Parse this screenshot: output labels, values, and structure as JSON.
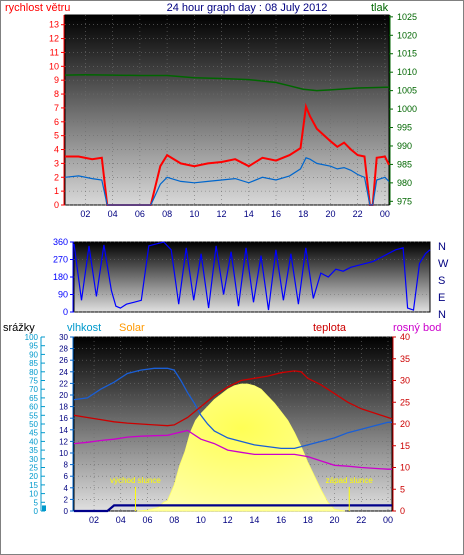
{
  "colors": {
    "wind": "#ff0000",
    "wind_avg": "#0066cc",
    "pressure": "#006600",
    "direction": "#0000ff",
    "humidity": "#1a5fd6",
    "solar_fill": "#ffff88",
    "solar_text": "#ff9900",
    "temperature": "#cc0000",
    "dewpoint": "#cc00cc",
    "rain": "#00008b",
    "rain_axis": "#0099cc",
    "marker": "#ffff00"
  },
  "chart_data": [
    {
      "type": "line",
      "title": "24 hour graph day : 08 July 2012",
      "ylabel_left": "rychlost větru",
      "ylabel_right": "tlak",
      "x_ticks": [
        "02",
        "04",
        "06",
        "08",
        "10",
        "12",
        "14",
        "16",
        "18",
        "20",
        "22",
        "00"
      ],
      "x_range": [
        0.5,
        24.3
      ],
      "left_axis": {
        "range": [
          0,
          13.7
        ],
        "ticks": [
          "0",
          "1",
          "2",
          "3",
          "4",
          "5",
          "6",
          "7",
          "8",
          "9",
          "10",
          "11",
          "12",
          "13"
        ]
      },
      "right_axis": {
        "range": [
          974,
          1025.5
        ],
        "ticks": [
          "975",
          "980",
          "985",
          "990",
          "995",
          "1000",
          "1005",
          "1010",
          "1015",
          "1020",
          "1025"
        ]
      },
      "series": [
        {
          "role": "gust",
          "x": [
            0.5,
            1.5,
            2.5,
            3.2,
            3.6,
            4.5,
            5.5,
            6.1,
            6.8,
            7.5,
            8.0,
            9.0,
            10.0,
            11.0,
            12.0,
            13.0,
            14.0,
            15.0,
            16.0,
            17.0,
            17.8,
            18.2,
            18.5,
            19.0,
            20.0,
            20.5,
            21.0,
            21.5,
            22.0,
            22.5,
            22.9,
            23.1,
            23.4,
            24.0,
            24.3
          ],
          "values": [
            3.5,
            3.5,
            3.3,
            3.4,
            0,
            0,
            0,
            0,
            0,
            2.8,
            3.6,
            3.0,
            2.8,
            3.0,
            3.1,
            3.3,
            2.8,
            3.4,
            3.2,
            3.6,
            4.1,
            7.1,
            6.4,
            5.5,
            4.6,
            4.2,
            4.5,
            4.0,
            3.6,
            3.5,
            0,
            0,
            3.4,
            3.5,
            2.9
          ]
        },
        {
          "role": "average",
          "x": [
            0.5,
            1.5,
            2.5,
            3.2,
            3.6,
            4.5,
            5.5,
            6.1,
            6.8,
            7.5,
            8.0,
            9.0,
            10.0,
            11.0,
            12.0,
            13.0,
            14.0,
            15.0,
            16.0,
            17.0,
            17.8,
            18.2,
            18.5,
            19.0,
            20.0,
            20.5,
            21.0,
            21.5,
            22.0,
            22.5,
            22.9,
            23.1,
            23.4,
            24.0,
            24.3
          ],
          "values": [
            2.0,
            2.1,
            1.9,
            1.8,
            0,
            0,
            0,
            0,
            0,
            1.5,
            2.0,
            1.7,
            1.6,
            1.7,
            1.8,
            1.9,
            1.6,
            2.0,
            1.8,
            2.1,
            2.6,
            3.4,
            3.3,
            3.0,
            2.8,
            2.6,
            2.7,
            2.5,
            2.2,
            2.0,
            0,
            0,
            1.8,
            2.0,
            1.7
          ]
        },
        {
          "role": "pressure",
          "x": [
            0.5,
            2,
            4,
            6,
            8,
            10,
            12,
            14,
            16,
            17,
            18,
            19,
            20,
            22,
            24,
            24.3
          ],
          "values": [
            1009.2,
            1009.3,
            1009.2,
            1009.1,
            1009.1,
            1008.5,
            1008.3,
            1008.0,
            1007.2,
            1006.3,
            1005.4,
            1005.0,
            1005.2,
            1005.7,
            1005.9,
            1005.9
          ]
        }
      ]
    },
    {
      "type": "line",
      "ylabel_right": "",
      "x_range": [
        0.5,
        24.3
      ],
      "left_axis": {
        "range": [
          0,
          360
        ],
        "ticks": [
          "0",
          "90",
          "180",
          "270",
          "360"
        ]
      },
      "compass": [
        "N",
        "W",
        "S",
        "E",
        "N"
      ],
      "series": [
        {
          "role": "direction",
          "x": [
            0.5,
            1.0,
            1.5,
            2.0,
            2.5,
            3.0,
            3.3,
            3.6,
            4.0,
            4.5,
            5.0,
            5.5,
            6.0,
            6.5,
            7.0,
            7.5,
            8.0,
            8.5,
            9.0,
            9.5,
            10.0,
            10.5,
            11.0,
            11.5,
            12.0,
            12.5,
            13.0,
            13.5,
            14.0,
            14.5,
            15.0,
            15.5,
            16.0,
            16.5,
            17.0,
            17.5,
            18.0,
            18.5,
            19.0,
            19.5,
            20.0,
            20.5,
            21.0,
            21.5,
            22.0,
            22.5,
            22.8,
            23.2,
            23.6,
            24.0,
            24.3
          ],
          "values": [
            350,
            60,
            340,
            80,
            345,
            110,
            30,
            20,
            40,
            50,
            60,
            340,
            350,
            360,
            320,
            40,
            330,
            60,
            300,
            20,
            340,
            90,
            310,
            30,
            330,
            50,
            290,
            10,
            320,
            60,
            300,
            40,
            330,
            70,
            200,
            180,
            220,
            210,
            230,
            240,
            250,
            260,
            280,
            300,
            320,
            330,
            20,
            10,
            250,
            300,
            320
          ]
        }
      ]
    },
    {
      "type": "line",
      "left_labels": [
        "srážky",
        "vlhkost",
        "Solar"
      ],
      "right_labels": [
        "teplota",
        "rosný bod"
      ],
      "x_ticks": [
        "02",
        "04",
        "06",
        "08",
        "10",
        "12",
        "14",
        "16",
        "18",
        "20",
        "22",
        "00"
      ],
      "x_range": [
        0.5,
        24.3
      ],
      "rain_axis": {
        "range": [
          0,
          100
        ],
        "ticks": [
          "0",
          "5",
          "10",
          "15",
          "20",
          "25",
          "30",
          "35",
          "40",
          "45",
          "50",
          "55",
          "60",
          "65",
          "70",
          "75",
          "80",
          "85",
          "90",
          "95",
          "100"
        ]
      },
      "humidity_axis": {
        "range": [
          0,
          30
        ],
        "ticks": [
          "0",
          "2",
          "4",
          "6",
          "8",
          "10",
          "12",
          "14",
          "16",
          "18",
          "20",
          "22",
          "24",
          "26",
          "28",
          "30"
        ]
      },
      "temp_axis": {
        "range": [
          0,
          40
        ],
        "ticks": [
          "0",
          "5",
          "10",
          "15",
          "20",
          "25",
          "30",
          "35",
          "40"
        ]
      },
      "annotations": [
        {
          "text": "východ slunce",
          "x": 5.1
        },
        {
          "text": "západ slunce",
          "x": 21.1
        }
      ],
      "series": [
        {
          "role": "humidity",
          "x": [
            0.5,
            1.5,
            2.5,
            3.5,
            4.5,
            5.5,
            6.5,
            7.5,
            8.0,
            8.5,
            9.0,
            9.5,
            10.0,
            10.5,
            11.0,
            11.5,
            12.0,
            13.0,
            14.0,
            15.0,
            16.0,
            17.0,
            18.0,
            19.0,
            20.0,
            21.0,
            22.0,
            23.0,
            24.0,
            24.3
          ],
          "values": [
            64,
            65,
            70,
            74,
            79,
            81,
            82,
            82,
            81,
            75,
            68,
            62,
            55,
            50,
            46,
            44,
            42,
            40,
            38,
            37,
            36,
            36,
            38,
            40,
            42,
            45,
            47,
            49,
            51,
            51
          ]
        },
        {
          "role": "temperature",
          "x": [
            0.5,
            1.5,
            2.5,
            3.5,
            4.5,
            5.5,
            6.5,
            7.5,
            8.0,
            9.0,
            10.0,
            11.0,
            12.0,
            13.0,
            14.0,
            15.0,
            16.0,
            17.0,
            17.5,
            18.0,
            19.0,
            20.0,
            21.0,
            22.0,
            23.0,
            24.0,
            24.3
          ],
          "values": [
            22.0,
            21.5,
            21.0,
            20.5,
            20.2,
            20.0,
            19.8,
            19.6,
            19.8,
            21.5,
            24.0,
            26.5,
            28.5,
            30.0,
            30.5,
            31.0,
            31.8,
            32.2,
            32.0,
            30.5,
            29.0,
            27.0,
            25.0,
            23.5,
            22.5,
            21.5,
            21.2
          ]
        },
        {
          "role": "dewpoint",
          "x": [
            0.5,
            1.5,
            2.5,
            3.5,
            4.5,
            5.5,
            6.5,
            7.5,
            8.0,
            9.0,
            10.0,
            11.0,
            12.0,
            13.0,
            14.0,
            15.0,
            16.0,
            17.0,
            18.0,
            19.0,
            20.0,
            21.0,
            22.0,
            23.0,
            24.0,
            24.3
          ],
          "values": [
            15.5,
            15.8,
            16.2,
            16.5,
            17.0,
            17.2,
            17.3,
            17.4,
            17.8,
            18.5,
            16.5,
            15.5,
            14.0,
            13.5,
            13.0,
            13.0,
            13.0,
            13.0,
            12.5,
            11.5,
            10.5,
            10.3,
            10.0,
            9.8,
            9.6,
            9.6
          ]
        },
        {
          "role": "solar",
          "x": [
            5.2,
            6.0,
            6.8,
            7.2,
            7.5,
            8.0,
            8.4,
            8.8,
            9.2,
            9.6,
            10.0,
            10.5,
            11.0,
            11.5,
            12.0,
            12.5,
            13.0,
            13.5,
            14.0,
            14.5,
            15.0,
            15.5,
            16.0,
            16.5,
            17.0,
            17.5,
            18.0,
            18.5,
            19.0,
            19.5,
            20.0,
            20.8
          ],
          "values": [
            0,
            0.5,
            2,
            5,
            6,
            15,
            26,
            34,
            45,
            52,
            56,
            60,
            64,
            67,
            70,
            72,
            73,
            73,
            72,
            70,
            66,
            62,
            57,
            52,
            45,
            37,
            28,
            20,
            12,
            5,
            1,
            0
          ]
        },
        {
          "role": "rain",
          "x": [
            0.5,
            3.0,
            3.5,
            8.0,
            24.3
          ],
          "values": [
            0,
            0,
            3.2,
            3.2,
            3.2
          ]
        }
      ]
    }
  ]
}
